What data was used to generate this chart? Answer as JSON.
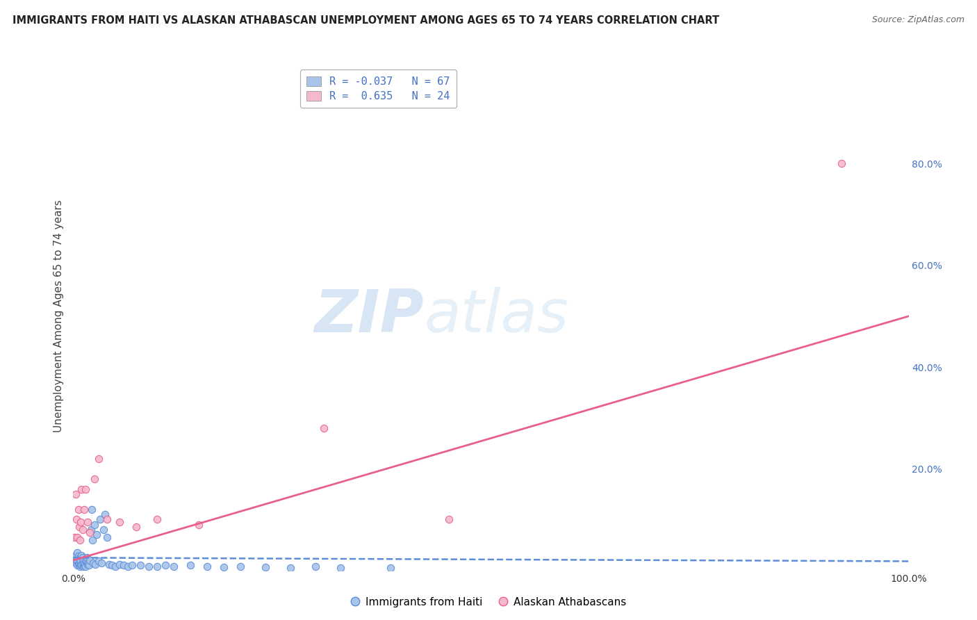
{
  "title": "IMMIGRANTS FROM HAITI VS ALASKAN ATHABASCAN UNEMPLOYMENT AMONG AGES 65 TO 74 YEARS CORRELATION CHART",
  "source": "Source: ZipAtlas.com",
  "ylabel": "Unemployment Among Ages 65 to 74 years",
  "xlim": [
    0,
    1.0
  ],
  "ylim": [
    0,
    1.0
  ],
  "haiti_color": "#a8c4e8",
  "haiti_color_line": "#5b8dd9",
  "athabascan_color": "#f5b8cc",
  "athabascan_color_line": "#e8608a",
  "haiti_R": -0.037,
  "haiti_N": 67,
  "athabascan_R": 0.635,
  "athabascan_N": 24,
  "legend_label_haiti": "Immigrants from Haiti",
  "legend_label_athabascan": "Alaskan Athabascans",
  "watermark_zip": "ZIP",
  "watermark_atlas": "atlas",
  "background_color": "#ffffff",
  "haiti_scatter_x": [
    0.001,
    0.002,
    0.003,
    0.003,
    0.004,
    0.004,
    0.005,
    0.005,
    0.006,
    0.006,
    0.007,
    0.007,
    0.008,
    0.008,
    0.009,
    0.009,
    0.01,
    0.01,
    0.011,
    0.011,
    0.012,
    0.012,
    0.013,
    0.013,
    0.014,
    0.015,
    0.015,
    0.016,
    0.016,
    0.017,
    0.018,
    0.019,
    0.02,
    0.021,
    0.022,
    0.023,
    0.024,
    0.025,
    0.026,
    0.028,
    0.03,
    0.032,
    0.034,
    0.036,
    0.038,
    0.04,
    0.043,
    0.046,
    0.05,
    0.055,
    0.06,
    0.065,
    0.07,
    0.08,
    0.09,
    0.1,
    0.11,
    0.12,
    0.14,
    0.16,
    0.18,
    0.2,
    0.23,
    0.26,
    0.29,
    0.32,
    0.38
  ],
  "haiti_scatter_y": [
    0.02,
    0.025,
    0.015,
    0.03,
    0.018,
    0.022,
    0.01,
    0.035,
    0.012,
    0.028,
    0.015,
    0.02,
    0.008,
    0.025,
    0.01,
    0.018,
    0.012,
    0.03,
    0.015,
    0.025,
    0.008,
    0.02,
    0.01,
    0.015,
    0.012,
    0.02,
    0.008,
    0.018,
    0.025,
    0.012,
    0.015,
    0.01,
    0.02,
    0.08,
    0.12,
    0.06,
    0.015,
    0.09,
    0.012,
    0.07,
    0.018,
    0.1,
    0.015,
    0.08,
    0.11,
    0.065,
    0.012,
    0.01,
    0.008,
    0.012,
    0.01,
    0.008,
    0.01,
    0.01,
    0.008,
    0.008,
    0.01,
    0.008,
    0.01,
    0.008,
    0.006,
    0.008,
    0.006,
    0.005,
    0.008,
    0.005,
    0.005
  ],
  "athabascan_scatter_x": [
    0.001,
    0.003,
    0.004,
    0.005,
    0.006,
    0.007,
    0.008,
    0.009,
    0.01,
    0.011,
    0.013,
    0.015,
    0.017,
    0.02,
    0.025,
    0.03,
    0.04,
    0.055,
    0.075,
    0.1,
    0.15,
    0.3,
    0.45,
    0.92
  ],
  "athabascan_scatter_y": [
    0.065,
    0.15,
    0.1,
    0.065,
    0.12,
    0.085,
    0.06,
    0.095,
    0.16,
    0.08,
    0.12,
    0.16,
    0.095,
    0.075,
    0.18,
    0.22,
    0.1,
    0.095,
    0.085,
    0.1,
    0.09,
    0.28,
    0.1,
    0.8
  ],
  "grid_color": "#cccccc",
  "right_tick_color": "#4472c4",
  "legend_text_color": "#4472c4"
}
